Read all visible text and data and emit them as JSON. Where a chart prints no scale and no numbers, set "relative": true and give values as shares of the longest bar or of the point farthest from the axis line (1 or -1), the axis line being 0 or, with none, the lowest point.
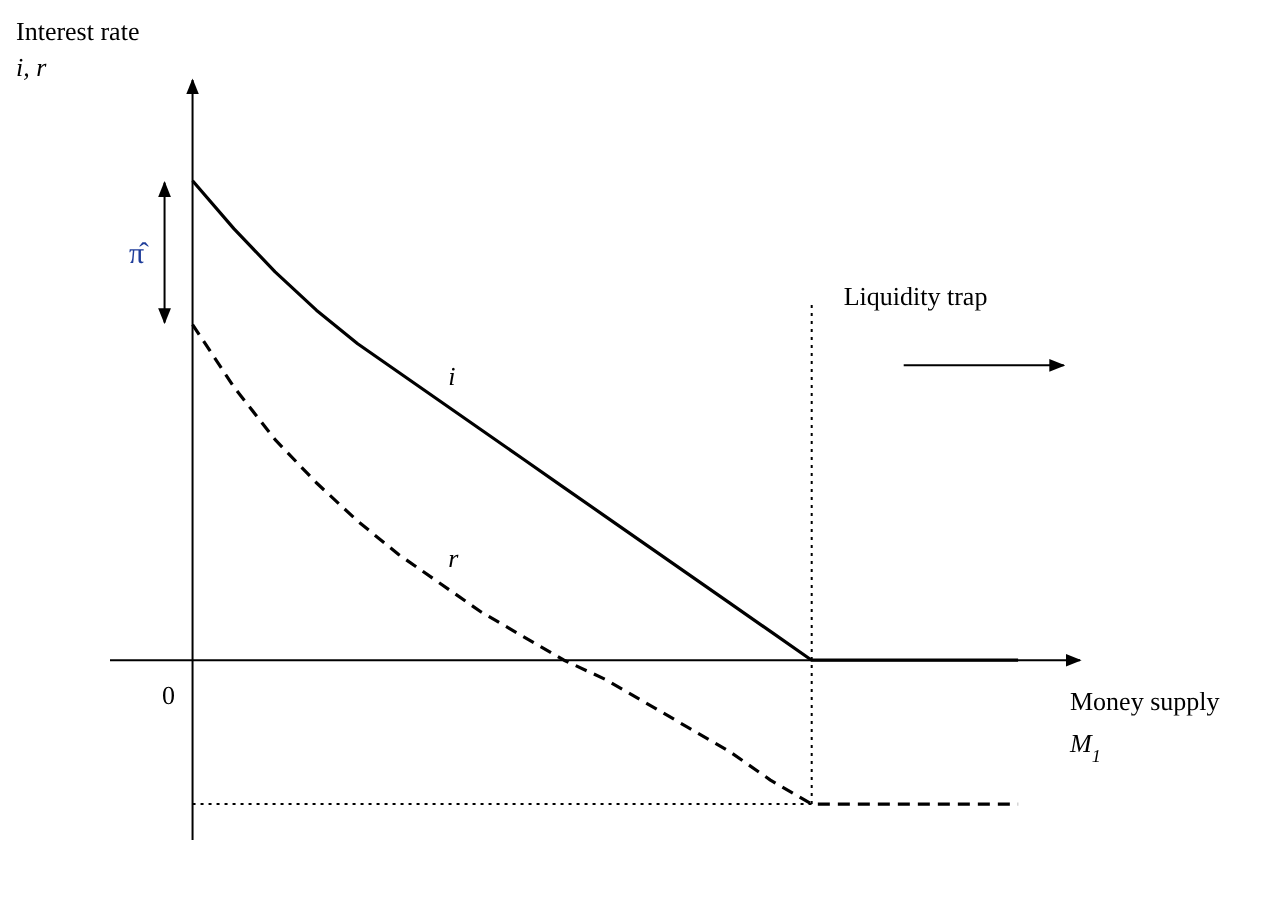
{
  "chart_data": {
    "type": "line",
    "relative": true,
    "ylabel": "Interest rate\ni, r",
    "xlabel": "Money supply\nM$_{1}$",
    "categories": [
      null,
      null,
      null,
      null,
      null,
      null,
      null,
      null,
      null,
      null,
      null,
      null,
      null,
      null,
      null,
      null,
      null,
      null,
      null,
      null,
      null
    ],
    "series": [
      {
        "name": "i",
        "color": "#000000",
        "line_style": "solid",
        "values": [
          1.0,
          0.9,
          0.81,
          0.73,
          0.66,
          0.6,
          0.54,
          0.48,
          0.42,
          0.36,
          0.3,
          0.24,
          0.18,
          0.12,
          0.06,
          0,
          0,
          0,
          0,
          0,
          0
        ]
      },
      {
        "name": "r",
        "color": "#000000",
        "line_style": "dashed",
        "values": [
          0.7,
          0.57,
          0.46,
          0.37,
          0.29,
          0.22,
          0.16,
          0.1,
          0.05,
          0.0,
          -0.04,
          -0.09,
          -0.14,
          -0.19,
          -0.25,
          -0.3,
          -0.3,
          -0.3,
          -0.3,
          -0.3,
          -0.3
        ]
      }
    ],
    "ref_lines": [
      {
        "axis": "y",
        "value": -0.3,
        "line_style": "dotted",
        "color": "#000000"
      }
    ],
    "annotations": [
      "π̂",
      "0",
      "Liquidity trap"
    ]
  }
}
